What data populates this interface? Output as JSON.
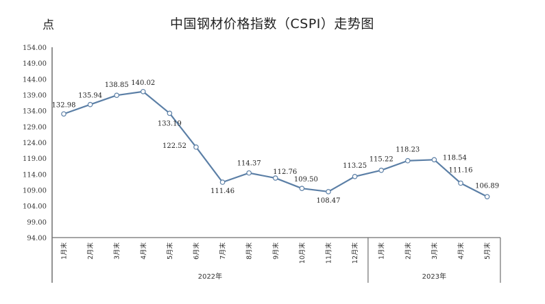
{
  "chart_data": {
    "type": "line",
    "title": "中国钢材价格指数（CSPI）走势图",
    "ylabel": "点",
    "xlabel": "",
    "ylim": [
      94,
      154
    ],
    "yticks": [
      "154.00",
      "149.00",
      "144.00",
      "139.00",
      "134.00",
      "129.00",
      "124.00",
      "119.00",
      "114.00",
      "109.00",
      "104.00",
      "99.00",
      "94.00"
    ],
    "grid": false,
    "legend": null,
    "categories": [
      "1月末",
      "2月末",
      "3月末",
      "4月末",
      "5月末",
      "6月末",
      "7月末",
      "8月末",
      "9月末",
      "10月末",
      "11月末",
      "12月末",
      "1月末",
      "2月末",
      "3月末",
      "4月末",
      "5月末"
    ],
    "groups": [
      {
        "label": "2022年",
        "start": 0,
        "end": 11
      },
      {
        "label": "2023年",
        "start": 12,
        "end": 16
      }
    ],
    "series": [
      {
        "name": "CSPI",
        "color": "#5b7fa6",
        "values": [
          132.98,
          135.94,
          138.85,
          140.02,
          133.19,
          122.52,
          111.46,
          114.37,
          112.76,
          109.5,
          108.47,
          113.25,
          115.22,
          118.23,
          118.54,
          111.16,
          106.89
        ],
        "labels": [
          "132.98",
          "135.94",
          "138.85",
          "140.02",
          "133.19",
          "122.52",
          "111.46",
          "114.37",
          "112.76",
          "109.50",
          "108.47",
          "113.25",
          "115.22",
          "118.23",
          "118.54",
          "111.16",
          "106.89"
        ]
      }
    ]
  },
  "header": {
    "unit": "点",
    "title": "中国钢材价格指数（CSPI）走势图"
  }
}
